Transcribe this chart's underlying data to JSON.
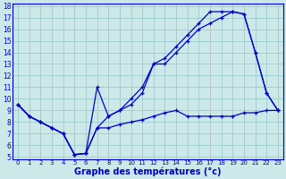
{
  "xlabel": "Graphe des températures (°c)",
  "bg_color": "#cce8e8",
  "line_color": "#0000cc",
  "grid_color": "#99cccc",
  "xlim": [
    -0.5,
    23.5
  ],
  "ylim": [
    4.8,
    18.2
  ],
  "xticks": [
    0,
    1,
    2,
    3,
    4,
    5,
    6,
    7,
    8,
    9,
    10,
    11,
    12,
    13,
    14,
    15,
    16,
    17,
    18,
    19,
    20,
    21,
    22,
    23
  ],
  "yticks": [
    5,
    6,
    7,
    8,
    9,
    10,
    11,
    12,
    13,
    14,
    15,
    16,
    17,
    18
  ],
  "series1_x": [
    0,
    1,
    2,
    3,
    4,
    5,
    6,
    7,
    8,
    9,
    10,
    11,
    12,
    13,
    14,
    15,
    16,
    17,
    18,
    19,
    20,
    21,
    22,
    23
  ],
  "series1_y": [
    9.5,
    8.5,
    8.0,
    7.5,
    7.0,
    5.2,
    5.3,
    7.5,
    8.5,
    9.0,
    9.5,
    10.5,
    13.0,
    13.0,
    14.0,
    15.0,
    16.0,
    16.5,
    17.0,
    17.5,
    17.3,
    14.0,
    10.5,
    9.0
  ],
  "series2_x": [
    0,
    1,
    2,
    3,
    4,
    5,
    6,
    7,
    8,
    9,
    10,
    11,
    12,
    13,
    14,
    15,
    16,
    17,
    18,
    19,
    20,
    21,
    22,
    23
  ],
  "series2_y": [
    9.5,
    8.5,
    8.0,
    7.5,
    7.0,
    5.2,
    5.3,
    11.0,
    8.5,
    9.0,
    10.0,
    11.0,
    13.0,
    13.5,
    14.5,
    15.5,
    16.5,
    17.5,
    17.5,
    17.5,
    17.3,
    14.0,
    10.5,
    9.0
  ],
  "series3_x": [
    0,
    1,
    2,
    3,
    4,
    5,
    6,
    7,
    8,
    9,
    10,
    11,
    12,
    13,
    14,
    15,
    16,
    17,
    18,
    19,
    20,
    21,
    22,
    23
  ],
  "series3_y": [
    9.5,
    8.5,
    8.0,
    7.5,
    7.0,
    5.2,
    5.3,
    7.5,
    7.5,
    7.8,
    8.0,
    8.2,
    8.5,
    8.8,
    9.0,
    8.5,
    8.5,
    8.5,
    8.5,
    8.5,
    8.8,
    8.8,
    9.0,
    9.0
  ]
}
